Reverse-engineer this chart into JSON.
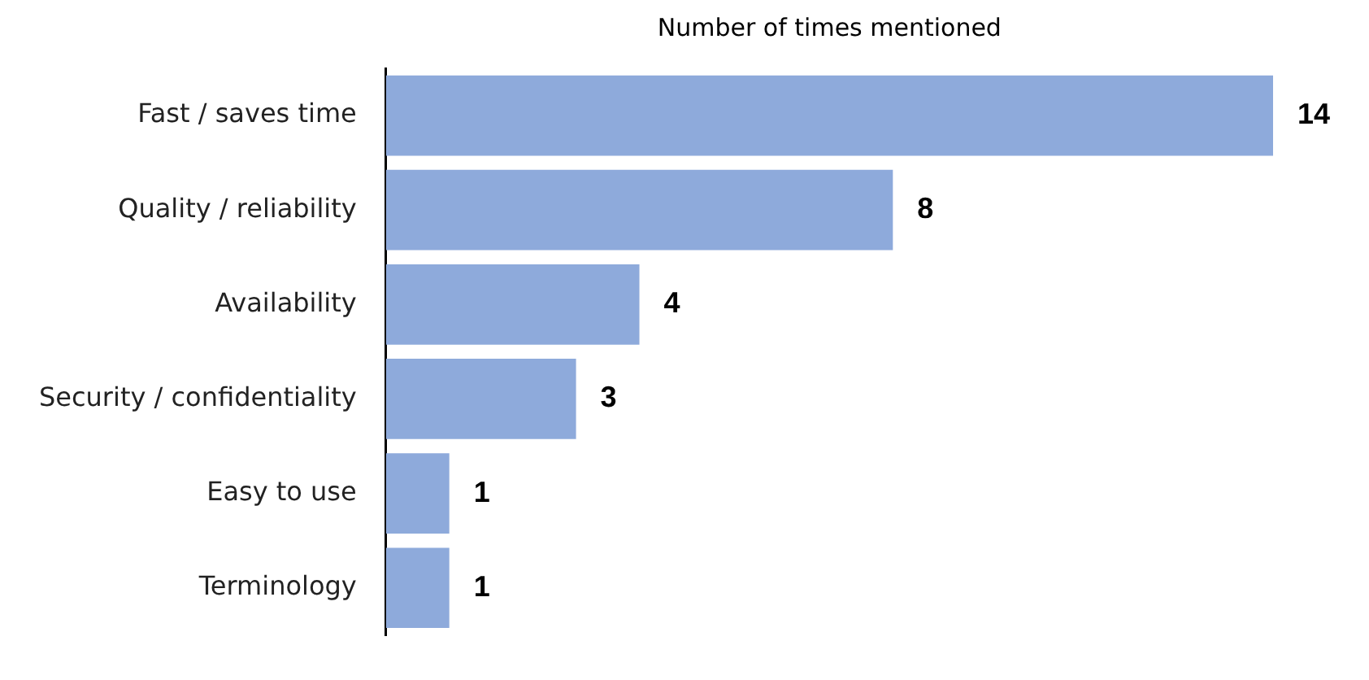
{
  "chart_data": {
    "type": "bar",
    "orientation": "horizontal",
    "title": "Number of times mentioned",
    "categories": [
      "Fast / saves time",
      "Quality / reliability",
      "Availability",
      "Security / confidentiality",
      "Easy to use",
      "Terminology"
    ],
    "values": [
      14,
      8,
      4,
      3,
      1,
      1
    ],
    "color": "#8eaadb",
    "data_labels": true,
    "legend": false
  }
}
